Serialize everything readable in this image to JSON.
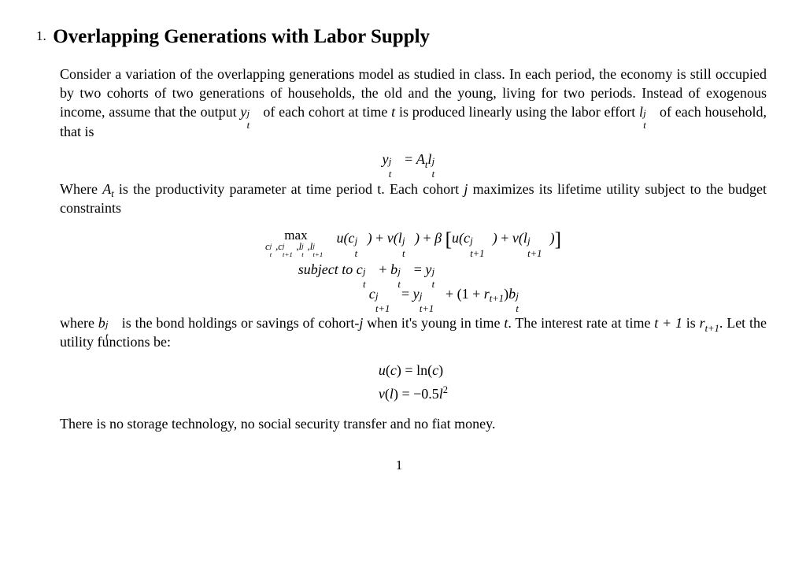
{
  "list_number": "1.",
  "title": "Overlapping Generations with Labor Supply",
  "para1_a": "Consider a variation of the overlapping generations model as studied in class. In each period, the economy is still occupied by two cohorts of two generations of households, the old and the young, living for two periods. Instead of exogenous income, assume that the output ",
  "para1_b": " of each cohort at time ",
  "para1_c": " is produced linearly using the labor effort ",
  "para1_d": " of each household, that is",
  "t_var": "t",
  "para2_a": "Where ",
  "para2_b": " is the productivity parameter at time period t. Each cohort ",
  "para2_c": " maximizes its lifetime utility subject to the budget constraints",
  "A_t": "A",
  "j_var": "j",
  "para3_a": "where ",
  "para3_b": " is the bond holdings or savings of cohort-",
  "para3_c": " when it's young in time ",
  "para3_d": ". The interest rate at time ",
  "para3_e": " is ",
  "para3_f": ". Let the utility functions be:",
  "tplus1": "t + 1",
  "r_tplus1": "r",
  "para4": "There is no storage technology, no social security transfer and no fiat money.",
  "page_number": "1",
  "eq1": "y",
  "eq1_eq": " = A",
  "eq1_l": "l",
  "eq_ut1": "u(c) = ln(c)",
  "eq_ut2": "v(l) = −0.5l",
  "eq_ut2_exp": "2",
  "opt_max": "max",
  "opt_sub": "c",
  "subject": "subject to",
  "yjt_sup": "j",
  "yjt_sub": "t"
}
